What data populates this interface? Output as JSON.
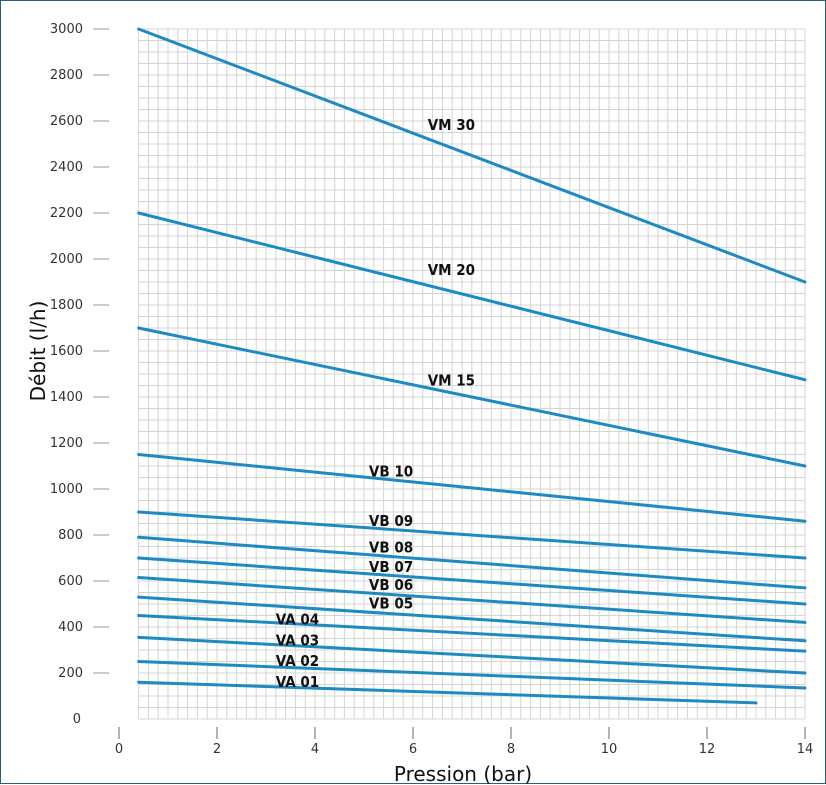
{
  "chart_data": {
    "type": "line",
    "xlabel": "Pression (bar)",
    "ylabel": "Débit (l/h)",
    "xlim": [
      0,
      14
    ],
    "ylim": [
      0,
      3000
    ],
    "x_ticks": [
      "0",
      "2",
      "4",
      "6",
      "8",
      "10",
      "12",
      "14"
    ],
    "y_ticks": [
      "0",
      "200",
      "400",
      "600",
      "800",
      "1000",
      "1200",
      "1400",
      "1600",
      "1800",
      "2000",
      "2200",
      "2400",
      "2600",
      "2800",
      "3000"
    ],
    "grid": true,
    "line_color": "#1d8ac4",
    "series": [
      {
        "name": "VM 30",
        "x": [
          0.4,
          14
        ],
        "y": [
          3000,
          1900
        ],
        "label_at": [
          6.3,
          2560
        ]
      },
      {
        "name": "VM 20",
        "x": [
          0.4,
          14
        ],
        "y": [
          2200,
          1475
        ],
        "label_at": [
          6.3,
          1930
        ]
      },
      {
        "name": "VM 15",
        "x": [
          0.4,
          14
        ],
        "y": [
          1700,
          1100
        ],
        "label_at": [
          6.3,
          1450
        ]
      },
      {
        "name": "VB 10",
        "x": [
          0.4,
          14
        ],
        "y": [
          1150,
          860
        ],
        "label_at": [
          5.1,
          1055
        ]
      },
      {
        "name": "VB 09",
        "x": [
          0.4,
          14
        ],
        "y": [
          900,
          700
        ],
        "label_at": [
          5.1,
          840
        ]
      },
      {
        "name": "VB 08",
        "x": [
          0.4,
          14
        ],
        "y": [
          790,
          570
        ],
        "label_at": [
          5.1,
          725
        ]
      },
      {
        "name": "VB 07",
        "x": [
          0.4,
          14
        ],
        "y": [
          700,
          500
        ],
        "label_at": [
          5.1,
          640
        ]
      },
      {
        "name": "VB 06",
        "x": [
          0.4,
          14
        ],
        "y": [
          615,
          420
        ],
        "label_at": [
          5.1,
          560
        ]
      },
      {
        "name": "VB 05",
        "x": [
          0.4,
          14
        ],
        "y": [
          530,
          340
        ],
        "label_at": [
          5.1,
          480
        ]
      },
      {
        "name": "VA 04",
        "x": [
          0.4,
          14
        ],
        "y": [
          450,
          295
        ],
        "label_at": [
          3.2,
          410
        ]
      },
      {
        "name": "VA 03",
        "x": [
          0.4,
          14
        ],
        "y": [
          355,
          200
        ],
        "label_at": [
          3.2,
          320
        ]
      },
      {
        "name": "VA 02",
        "x": [
          0.4,
          14
        ],
        "y": [
          250,
          135
        ],
        "label_at": [
          3.2,
          230
        ]
      },
      {
        "name": "VA 01",
        "x": [
          0.4,
          13
        ],
        "y": [
          160,
          70
        ],
        "label_at": [
          3.2,
          140
        ]
      }
    ]
  }
}
